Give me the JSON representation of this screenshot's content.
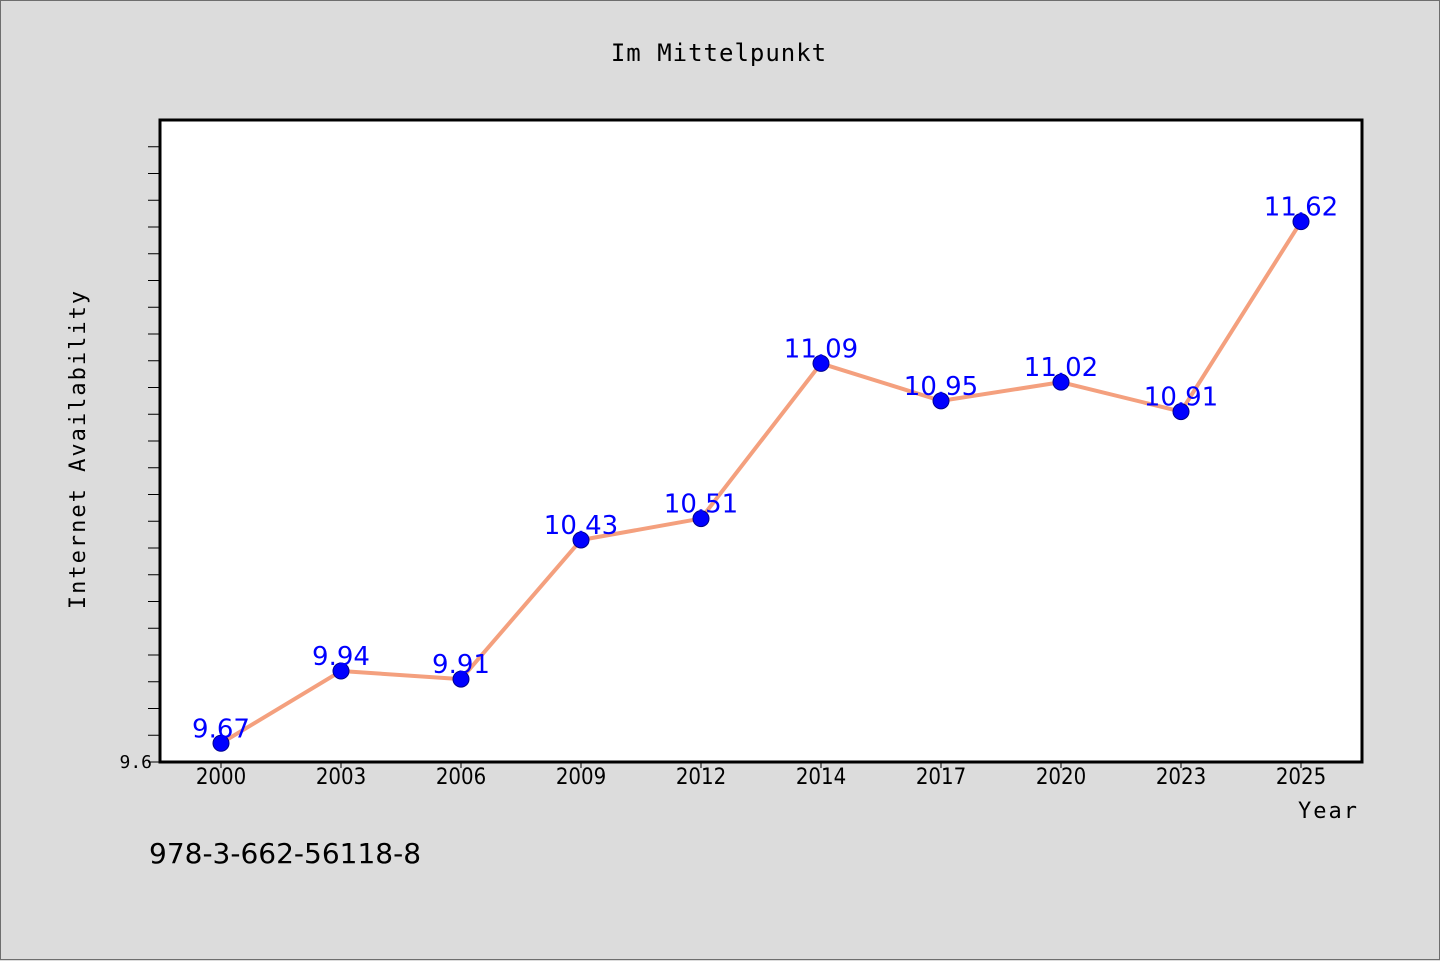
{
  "title": "Im Mittelpunkt",
  "footer_text": "978-3-662-56118-8",
  "colors": {
    "background": "#dcdcdc",
    "plot_background": "#ffffff",
    "line": "#f4a07e",
    "marker": "#0000ff",
    "data_label": "#0000ff"
  },
  "chart_data": {
    "type": "line",
    "title": "Im Mittelpunkt",
    "xlabel": "Year",
    "ylabel": "Internet Availability",
    "categories": [
      "2000",
      "2003",
      "2006",
      "2009",
      "2012",
      "2014",
      "2017",
      "2020",
      "2023",
      "2025"
    ],
    "series": [
      {
        "values": [
          9.67,
          9.94,
          9.91,
          10.43,
          10.51,
          11.09,
          10.95,
          11.02,
          10.91,
          11.62
        ],
        "data_labels": [
          "9.67",
          "9.94",
          "9.91",
          "10.43",
          "10.51",
          "11.09",
          "10.95",
          "11.02",
          "10.91",
          "11.62"
        ]
      }
    ],
    "ylim": [
      9.6,
      12.0
    ],
    "yticks_labeled": [
      "9.6"
    ],
    "minor_tick_step": 0.1,
    "grid": false,
    "legend": "none"
  }
}
